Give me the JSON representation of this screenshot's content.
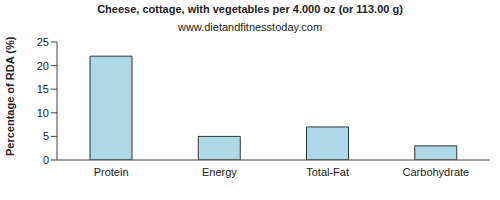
{
  "chart_data": {
    "type": "bar",
    "title": "Cheese, cottage, with vegetables per 4.000 oz (or 113.00 g)",
    "subtitle": "www.dietandfitnesstoday.com",
    "y_label": "Percentage of RDA (%)",
    "categories": [
      "Protein",
      "Energy",
      "Total-Fat",
      "Carbohydrate"
    ],
    "values": [
      22,
      5,
      7,
      3
    ],
    "color": "#add8e6",
    "ylim": [
      0,
      25
    ],
    "yticks": [
      0,
      5,
      10,
      15,
      20,
      25
    ],
    "grid": false
  }
}
